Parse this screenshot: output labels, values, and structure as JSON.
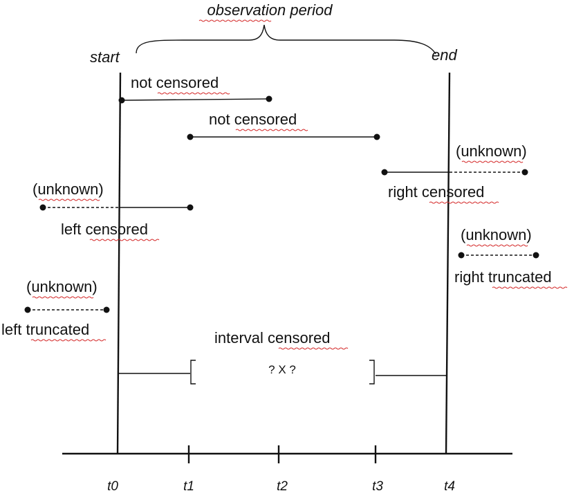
{
  "header": {
    "title": "observation period",
    "start_label": "start",
    "end_label": "end"
  },
  "rows": [
    {
      "label": "not censored"
    },
    {
      "label": "not censored"
    },
    {
      "label": "right censored",
      "note": "(unknown)"
    },
    {
      "label": "left censored",
      "note": "(unknown)"
    },
    {
      "label": "right truncated",
      "note": "(unknown)"
    },
    {
      "label": "left truncated",
      "note": "(unknown)"
    },
    {
      "label": "interval censored",
      "marker": "? X ?"
    }
  ],
  "axis": {
    "ticks": [
      "t0",
      "t1",
      "t2",
      "t3",
      "t4"
    ]
  },
  "colors": {
    "line": "#111111",
    "spellcheck_underline": "#d42a2a"
  }
}
